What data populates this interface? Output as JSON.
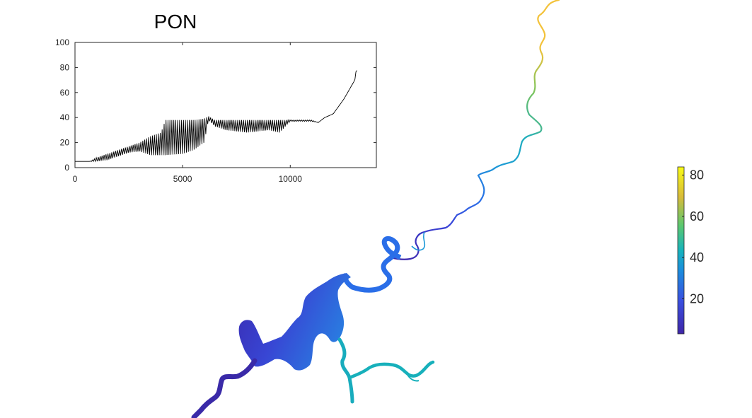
{
  "chart_data": [
    {
      "type": "line",
      "title": "PON",
      "xlabel": "",
      "ylabel": "",
      "xlim": [
        0,
        14000
      ],
      "ylim": [
        0,
        100
      ],
      "xticks": [
        0,
        5000,
        10000
      ],
      "yticks": [
        0,
        20,
        40,
        60,
        80,
        100
      ],
      "x_tick_labels": [
        "0",
        "5000",
        "10000"
      ],
      "y_tick_labels": [
        "0",
        "20",
        "40",
        "60",
        "80",
        "100"
      ],
      "series": [
        {
          "name": "PON",
          "color": "#000000",
          "style": "dense oscillating profile",
          "envelope_x": [
            0,
            700,
            1000,
            1500,
            2000,
            2500,
            3000,
            3500,
            4000,
            4200,
            5000,
            5500,
            6000,
            6200,
            6500,
            7000,
            8000,
            9000,
            9500,
            10000,
            11000,
            11300,
            11600,
            12000,
            12500,
            13000,
            13100
          ],
          "upper": [
            5,
            5,
            8,
            11,
            14,
            17,
            20,
            25,
            28,
            38,
            38,
            38,
            39,
            41,
            38,
            38,
            38,
            38,
            38,
            38,
            38,
            36,
            40,
            43,
            55,
            70,
            83
          ],
          "lower": [
            5,
            5,
            5,
            6,
            9,
            12,
            13,
            10,
            10,
            10,
            11,
            14,
            20,
            38,
            33,
            30,
            28,
            30,
            28,
            37,
            37,
            36,
            40,
            43,
            55,
            70,
            78
          ]
        }
      ]
    },
    {
      "type": "heatmap",
      "description_free": true,
      "colorbar": {
        "min": 3,
        "max": 84,
        "ticks": [
          20,
          40,
          60,
          80
        ],
        "tick_labels": [
          "20",
          "40",
          "60",
          "80"
        ],
        "colors": [
          "#3e26a8",
          "#3a50e0",
          "#1b8ddd",
          "#17b4bc",
          "#5cc86f",
          "#d8bb3a",
          "#f9fb15"
        ]
      }
    }
  ]
}
